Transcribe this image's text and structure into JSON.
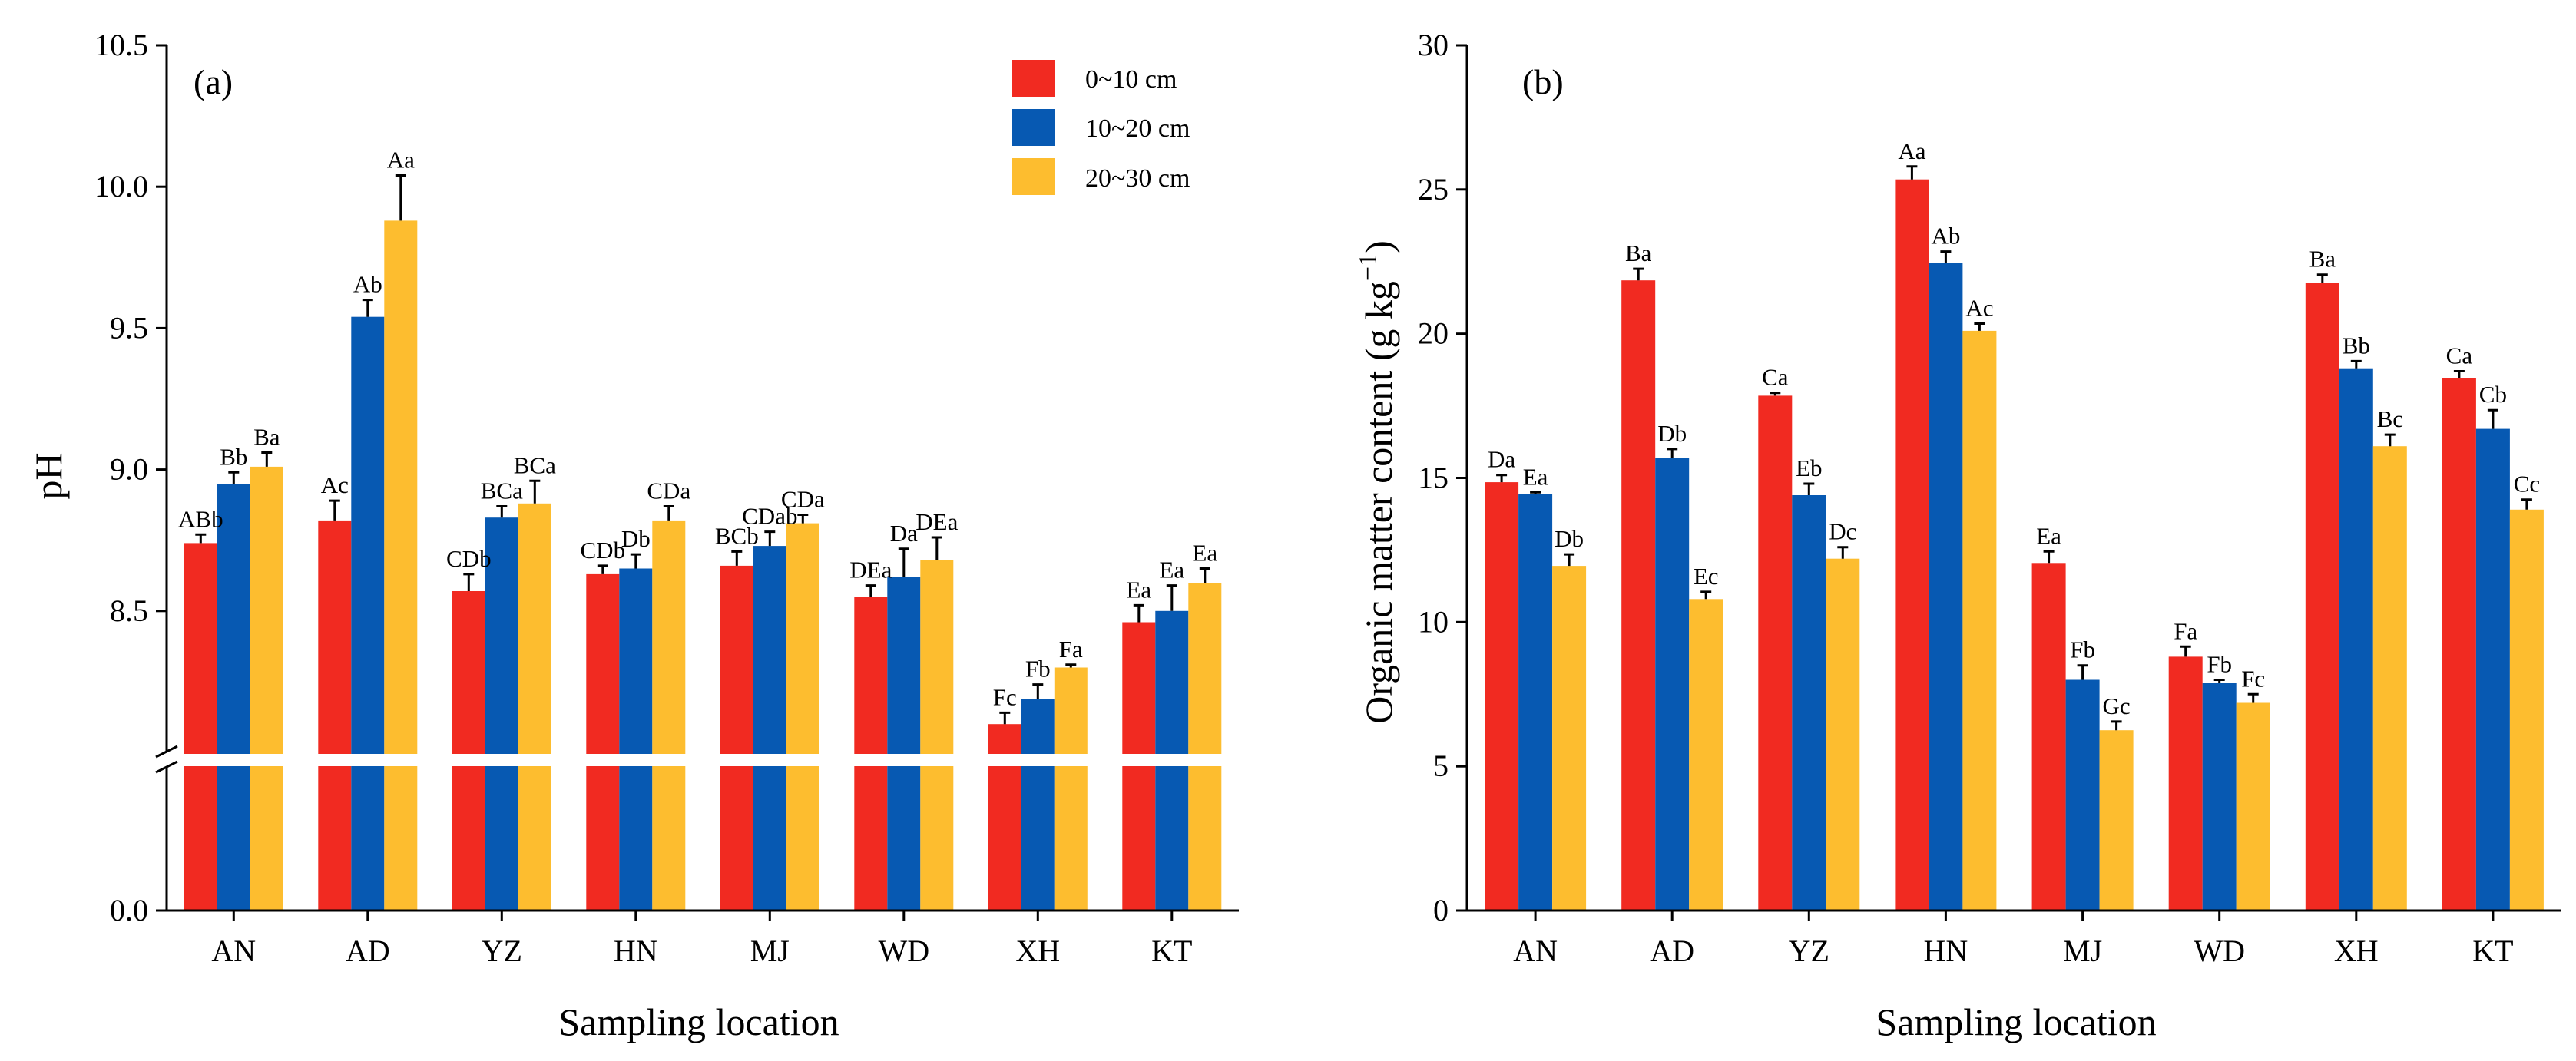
{
  "colors": {
    "0~10 cm": "#F12A21",
    "10~20 cm": "#0759B2",
    "20~30 cm": "#FDBD2F"
  },
  "chart_data": [
    {
      "type": "bar",
      "panel_label": "(a)",
      "xlabel": "Sampling location",
      "ylabel": "pH",
      "categories": [
        "AN",
        "AD",
        "YZ",
        "HN",
        "MJ",
        "WD",
        "XH",
        "KT"
      ],
      "y_tick_labels": [
        "0.0",
        "8.5",
        "9.0",
        "9.5",
        "10.0",
        "10.5"
      ],
      "axis_break": true,
      "ylim_upper_segment": [
        8.0,
        10.5
      ],
      "legend_position": "top-right",
      "series": [
        {
          "name": "0~10 cm",
          "values": [
            8.74,
            8.82,
            8.57,
            8.63,
            8.66,
            8.55,
            8.1,
            8.46
          ],
          "errors": [
            0.03,
            0.07,
            0.06,
            0.03,
            0.05,
            0.04,
            0.04,
            0.06
          ],
          "letters": [
            "ABb",
            "Ac",
            "CDb",
            "CDb",
            "BCb",
            "DEa",
            "Fc",
            "Ea"
          ]
        },
        {
          "name": "10~20 cm",
          "values": [
            8.95,
            9.54,
            8.83,
            8.65,
            8.73,
            8.62,
            8.19,
            8.5
          ],
          "errors": [
            0.04,
            0.06,
            0.04,
            0.05,
            0.05,
            0.1,
            0.05,
            0.09
          ],
          "letters": [
            "Bb",
            "Ab",
            "BCa",
            "Db",
            "CDab",
            "Da",
            "Fb",
            "Ea"
          ]
        },
        {
          "name": "20~30 cm",
          "values": [
            9.01,
            9.88,
            8.88,
            8.82,
            8.81,
            8.68,
            8.3,
            8.6
          ],
          "errors": [
            0.05,
            0.16,
            0.08,
            0.05,
            0.03,
            0.08,
            0.01,
            0.05
          ],
          "letters": [
            "Ba",
            "Aa",
            "BCa",
            "CDa",
            "CDa",
            "DEa",
            "Fa",
            "Ea"
          ]
        }
      ]
    },
    {
      "type": "bar",
      "panel_label": "(b)",
      "xlabel": "Sampling location",
      "ylabel": "Organic matter content (g kg",
      "ylabel_superscript": "−1",
      "ylabel_close": ")",
      "categories": [
        "AN",
        "AD",
        "YZ",
        "HN",
        "MJ",
        "WD",
        "XH",
        "KT"
      ],
      "y_tick_labels": [
        "0",
        "5",
        "10",
        "15",
        "20",
        "25",
        "30"
      ],
      "ylim": [
        0,
        30
      ],
      "series": [
        {
          "name": "0~10 cm",
          "values": [
            14.85,
            21.85,
            17.85,
            25.35,
            12.05,
            8.8,
            21.75,
            18.45
          ],
          "errors": [
            0.25,
            0.4,
            0.1,
            0.45,
            0.4,
            0.35,
            0.3,
            0.25
          ],
          "letters": [
            "Da",
            "Ba",
            "Ca",
            "Aa",
            "Ea",
            "Fa",
            "Ba",
            "Ca"
          ]
        },
        {
          "name": "10~20 cm",
          "values": [
            14.45,
            15.7,
            14.4,
            22.45,
            8.0,
            7.9,
            18.8,
            16.7
          ],
          "errors": [
            0.05,
            0.3,
            0.4,
            0.4,
            0.5,
            0.1,
            0.25,
            0.65
          ],
          "letters": [
            "Ea",
            "Db",
            "Eb",
            "Ab",
            "Fb",
            "Fb",
            "Bb",
            "Cb"
          ]
        },
        {
          "name": "20~30 cm",
          "values": [
            11.95,
            10.8,
            12.2,
            20.1,
            6.25,
            7.2,
            16.1,
            13.9
          ],
          "errors": [
            0.4,
            0.25,
            0.4,
            0.25,
            0.3,
            0.3,
            0.4,
            0.35
          ],
          "letters": [
            "Db",
            "Ec",
            "Dc",
            "Ac",
            "Gc",
            "Fc",
            "Bc",
            "Cc"
          ]
        }
      ]
    }
  ]
}
